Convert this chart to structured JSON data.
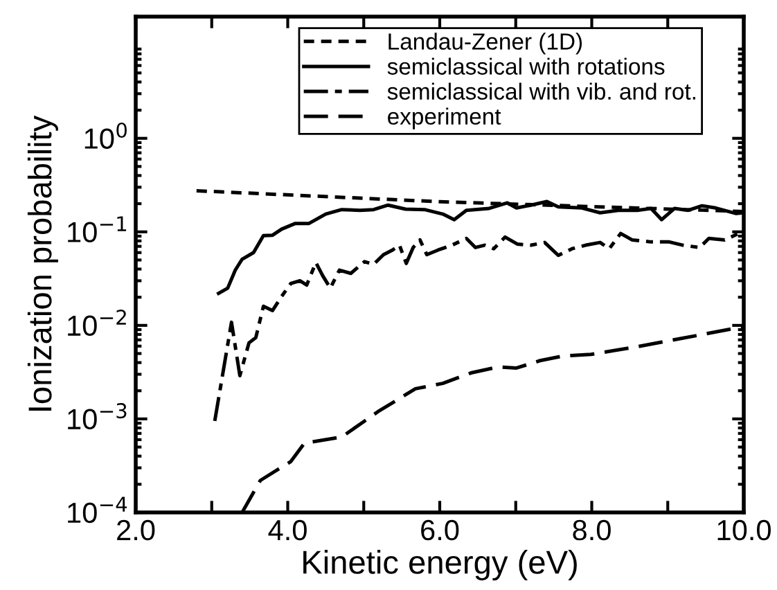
{
  "chart_data": {
    "type": "line",
    "xlabel": "Kinetic energy (eV)",
    "ylabel": "Ionization probability",
    "log": "y",
    "xlim": [
      2.0,
      10.0
    ],
    "ylim": [
      0.0001,
      20
    ],
    "xticks": [
      {
        "value": 2,
        "label": "2.0"
      },
      {
        "value": 3,
        "label": null
      },
      {
        "value": 4,
        "label": "4.0"
      },
      {
        "value": 5,
        "label": null
      },
      {
        "value": 6,
        "label": "6.0"
      },
      {
        "value": 7,
        "label": null
      },
      {
        "value": 8,
        "label": "8.0"
      },
      {
        "value": 9,
        "label": null
      },
      {
        "value": 10,
        "label": "10.0"
      }
    ],
    "yticks": [
      {
        "value": 0.0001,
        "label": "10$^{−4}$"
      },
      {
        "value": 0.001,
        "label": "10$^{−3}$"
      },
      {
        "value": 0.01,
        "label": "10$^{−2}$"
      },
      {
        "value": 0.1,
        "label": "10$^{−1}$"
      },
      {
        "value": 1,
        "label": "10$^{0}$"
      }
    ],
    "legend": "top",
    "grid": false,
    "series": [
      {
        "name": "Landau-Zener (1D)",
        "color": "#000000",
        "line_style": "dashed",
        "x": [
          2.8,
          6.0,
          10.0
        ],
        "values": [
          0.275,
          0.21,
          0.165
        ]
      },
      {
        "name": "semiclassical with rotations",
        "color": "#000000",
        "line_style": "solid",
        "x": [
          3.09,
          3.21,
          3.31,
          3.4,
          3.55,
          3.68,
          3.8,
          3.92,
          4.1,
          4.28,
          4.5,
          4.71,
          4.95,
          5.13,
          5.32,
          5.55,
          5.8,
          6.04,
          6.19,
          6.35,
          6.65,
          6.89,
          7.01,
          7.2,
          7.41,
          7.56,
          7.87,
          8.11,
          8.35,
          8.6,
          8.78,
          8.92,
          9.09,
          9.27,
          9.45,
          9.63,
          9.9,
          10.0
        ],
        "values": [
          0.022,
          0.025,
          0.039,
          0.051,
          0.06,
          0.091,
          0.092,
          0.107,
          0.123,
          0.123,
          0.155,
          0.173,
          0.17,
          0.173,
          0.193,
          0.175,
          0.173,
          0.155,
          0.135,
          0.17,
          0.178,
          0.204,
          0.18,
          0.193,
          0.211,
          0.185,
          0.18,
          0.16,
          0.17,
          0.17,
          0.178,
          0.135,
          0.178,
          0.17,
          0.19,
          0.18,
          0.157,
          0.16
        ]
      },
      {
        "name": "semiclassical with vib. and rot.",
        "color": "#000000",
        "line_style": "dashdot",
        "x": [
          3.04,
          3.26,
          3.37,
          3.49,
          3.58,
          3.68,
          3.8,
          3.92,
          4.04,
          4.16,
          4.25,
          4.37,
          4.46,
          4.56,
          4.68,
          4.83,
          5.01,
          5.13,
          5.26,
          5.38,
          5.47,
          5.56,
          5.65,
          5.74,
          5.83,
          5.98,
          6.16,
          6.35,
          6.47,
          6.59,
          6.71,
          6.86,
          7.02,
          7.2,
          7.38,
          7.56,
          7.74,
          7.92,
          8.11,
          8.23,
          8.38,
          8.53,
          8.78,
          9.02,
          9.2,
          9.42,
          9.54,
          9.75,
          9.93,
          10.0
        ],
        "values": [
          0.00095,
          0.0108,
          0.0029,
          0.0065,
          0.0074,
          0.016,
          0.0144,
          0.0204,
          0.028,
          0.03,
          0.027,
          0.047,
          0.034,
          0.025,
          0.039,
          0.036,
          0.048,
          0.045,
          0.057,
          0.064,
          0.072,
          0.046,
          0.068,
          0.082,
          0.057,
          0.064,
          0.072,
          0.085,
          0.068,
          0.072,
          0.066,
          0.088,
          0.074,
          0.072,
          0.077,
          0.056,
          0.066,
          0.072,
          0.077,
          0.066,
          0.096,
          0.082,
          0.078,
          0.078,
          0.072,
          0.068,
          0.085,
          0.082,
          0.096,
          0.09
        ]
      },
      {
        "name": "experiment",
        "color": "#000000",
        "line_style": "longdash",
        "x": [
          3.4,
          3.64,
          4.04,
          4.22,
          4.71,
          5.19,
          5.68,
          6.04,
          6.41,
          6.77,
          7.01,
          7.32,
          7.62,
          7.99,
          8.59,
          9.2,
          10.0
        ],
        "values": [
          0.0001,
          0.00022,
          0.00035,
          0.00055,
          0.00064,
          0.0012,
          0.0021,
          0.0024,
          0.0031,
          0.0036,
          0.0035,
          0.0042,
          0.0047,
          0.0049,
          0.0059,
          0.0073,
          0.0097
        ]
      }
    ]
  }
}
